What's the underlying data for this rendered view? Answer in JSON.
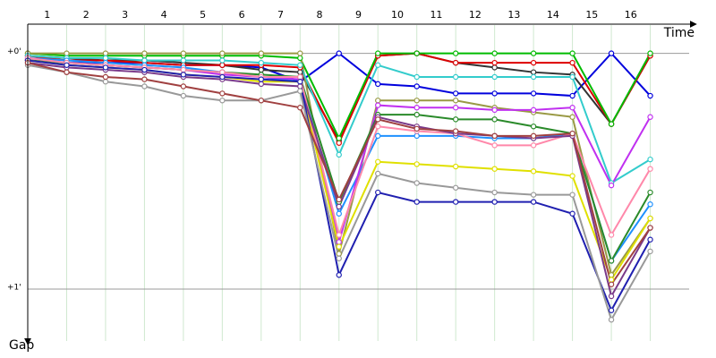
{
  "chart_data": {
    "type": "line",
    "x_label": "Time",
    "y_label": "Gap",
    "x": [
      0,
      1,
      2,
      3,
      4,
      5,
      6,
      7,
      8,
      9,
      10,
      11,
      12,
      13,
      14,
      15,
      16
    ],
    "xlim": [
      0,
      17
    ],
    "xticks": [
      {
        "value": 0.5,
        "label": "1"
      },
      {
        "value": 1.5,
        "label": "2"
      },
      {
        "value": 2.5,
        "label": "3"
      },
      {
        "value": 3.5,
        "label": "4"
      },
      {
        "value": 4.5,
        "label": "5"
      },
      {
        "value": 5.5,
        "label": "6"
      },
      {
        "value": 6.5,
        "label": "7"
      },
      {
        "value": 7.5,
        "label": "8"
      },
      {
        "value": 8.5,
        "label": "9"
      },
      {
        "value": 9.5,
        "label": "10"
      },
      {
        "value": 10.5,
        "label": "11"
      },
      {
        "value": 11.5,
        "label": "12"
      },
      {
        "value": 12.5,
        "label": "13"
      },
      {
        "value": 13.5,
        "label": "14"
      },
      {
        "value": 14.5,
        "label": "15"
      },
      {
        "value": 15.5,
        "label": "16"
      }
    ],
    "ylim": [
      -0.12,
      1.22
    ],
    "yticks": [
      {
        "value": 0,
        "label": "+0'"
      },
      {
        "value": 1,
        "label": "+1'"
      }
    ],
    "y_inverted": true,
    "grid": true,
    "series": [
      {
        "color": "#0000dd",
        "values": [
          0.03,
          0.04,
          0.04,
          0.04,
          0.05,
          0.05,
          0.06,
          0.12,
          0,
          0.13,
          0.14,
          0.17,
          0.17,
          0.17,
          0.18,
          0,
          0.18
        ]
      },
      {
        "color": "#333333",
        "values": [
          0.01,
          0.02,
          0.03,
          0.03,
          0.04,
          0.05,
          0.07,
          0.08,
          0.37,
          0.01,
          0,
          0.04,
          0.06,
          0.08,
          0.09,
          0.3,
          0.01
        ]
      },
      {
        "color": "#dd0000",
        "values": [
          0.01,
          0.03,
          0.03,
          0.04,
          0.05,
          0.05,
          0.05,
          0.06,
          0.38,
          0.01,
          0,
          0.04,
          0.04,
          0.04,
          0.04,
          0.3,
          0.01
        ]
      },
      {
        "color": "#00bb00",
        "values": [
          0,
          0.01,
          0.01,
          0.01,
          0.01,
          0.01,
          0.01,
          0.02,
          0.36,
          0,
          0,
          0,
          0,
          0,
          0,
          0.3,
          0
        ]
      },
      {
        "color": "#999944",
        "values": [
          0,
          0,
          0,
          0,
          0,
          0,
          0,
          0,
          0.85,
          0.2,
          0.2,
          0.2,
          0.23,
          0.25,
          0.27,
          0.94,
          0.7
        ]
      },
      {
        "color": "#33cccc",
        "values": [
          0.01,
          0.02,
          0.02,
          0.03,
          0.03,
          0.03,
          0.04,
          0.05,
          0.43,
          0.05,
          0.1,
          0.1,
          0.1,
          0.1,
          0.1,
          0.55,
          0.45
        ]
      },
      {
        "color": "#1e90ff",
        "values": [
          0.02,
          0.03,
          0.04,
          0.05,
          0.06,
          0.08,
          0.1,
          0.12,
          0.68,
          0.35,
          0.35,
          0.35,
          0.36,
          0.36,
          0.34,
          0.88,
          0.64
        ]
      },
      {
        "color": "#c030f0",
        "values": [
          0.02,
          0.04,
          0.05,
          0.06,
          0.07,
          0.09,
          0.1,
          0.11,
          0.8,
          0.22,
          0.23,
          0.23,
          0.24,
          0.24,
          0.23,
          0.56,
          0.27
        ]
      },
      {
        "color": "#2a8a2a",
        "values": [
          0.03,
          0.04,
          0.05,
          0.06,
          0.07,
          0.08,
          0.09,
          0.1,
          0.63,
          0.26,
          0.26,
          0.28,
          0.28,
          0.31,
          0.34,
          0.88,
          0.59
        ]
      },
      {
        "color": "#e0e000",
        "values": [
          0.03,
          0.05,
          0.06,
          0.07,
          0.09,
          0.1,
          0.12,
          0.12,
          0.82,
          0.46,
          0.47,
          0.48,
          0.49,
          0.5,
          0.52,
          0.96,
          0.7
        ]
      },
      {
        "color": "#ff88aa",
        "values": [
          0.02,
          0.04,
          0.05,
          0.06,
          0.07,
          0.08,
          0.1,
          0.1,
          0.77,
          0.31,
          0.33,
          0.34,
          0.39,
          0.39,
          0.34,
          0.77,
          0.49
        ]
      },
      {
        "color": "#7a3a8a",
        "values": [
          0.04,
          0.06,
          0.07,
          0.08,
          0.1,
          0.11,
          0.13,
          0.14,
          0.65,
          0.27,
          0.31,
          0.34,
          0.35,
          0.36,
          0.35,
          1.03,
          0.74
        ]
      },
      {
        "color": "#2020b0",
        "values": [
          0.03,
          0.05,
          0.06,
          0.07,
          0.09,
          0.1,
          0.11,
          0.12,
          0.94,
          0.59,
          0.63,
          0.63,
          0.63,
          0.63,
          0.68,
          1.09,
          0.79
        ]
      },
      {
        "color": "#999999",
        "values": [
          0.05,
          0.08,
          0.12,
          0.14,
          0.18,
          0.2,
          0.2,
          0.16,
          0.87,
          0.51,
          0.55,
          0.57,
          0.59,
          0.6,
          0.6,
          1.13,
          0.84
        ]
      },
      {
        "color": "#a04040",
        "values": [
          0.04,
          0.08,
          0.1,
          0.11,
          0.14,
          0.17,
          0.2,
          0.23,
          0.62,
          0.28,
          0.32,
          0.33,
          0.35,
          0.35,
          0.34,
          0.98,
          0.74
        ]
      }
    ]
  }
}
